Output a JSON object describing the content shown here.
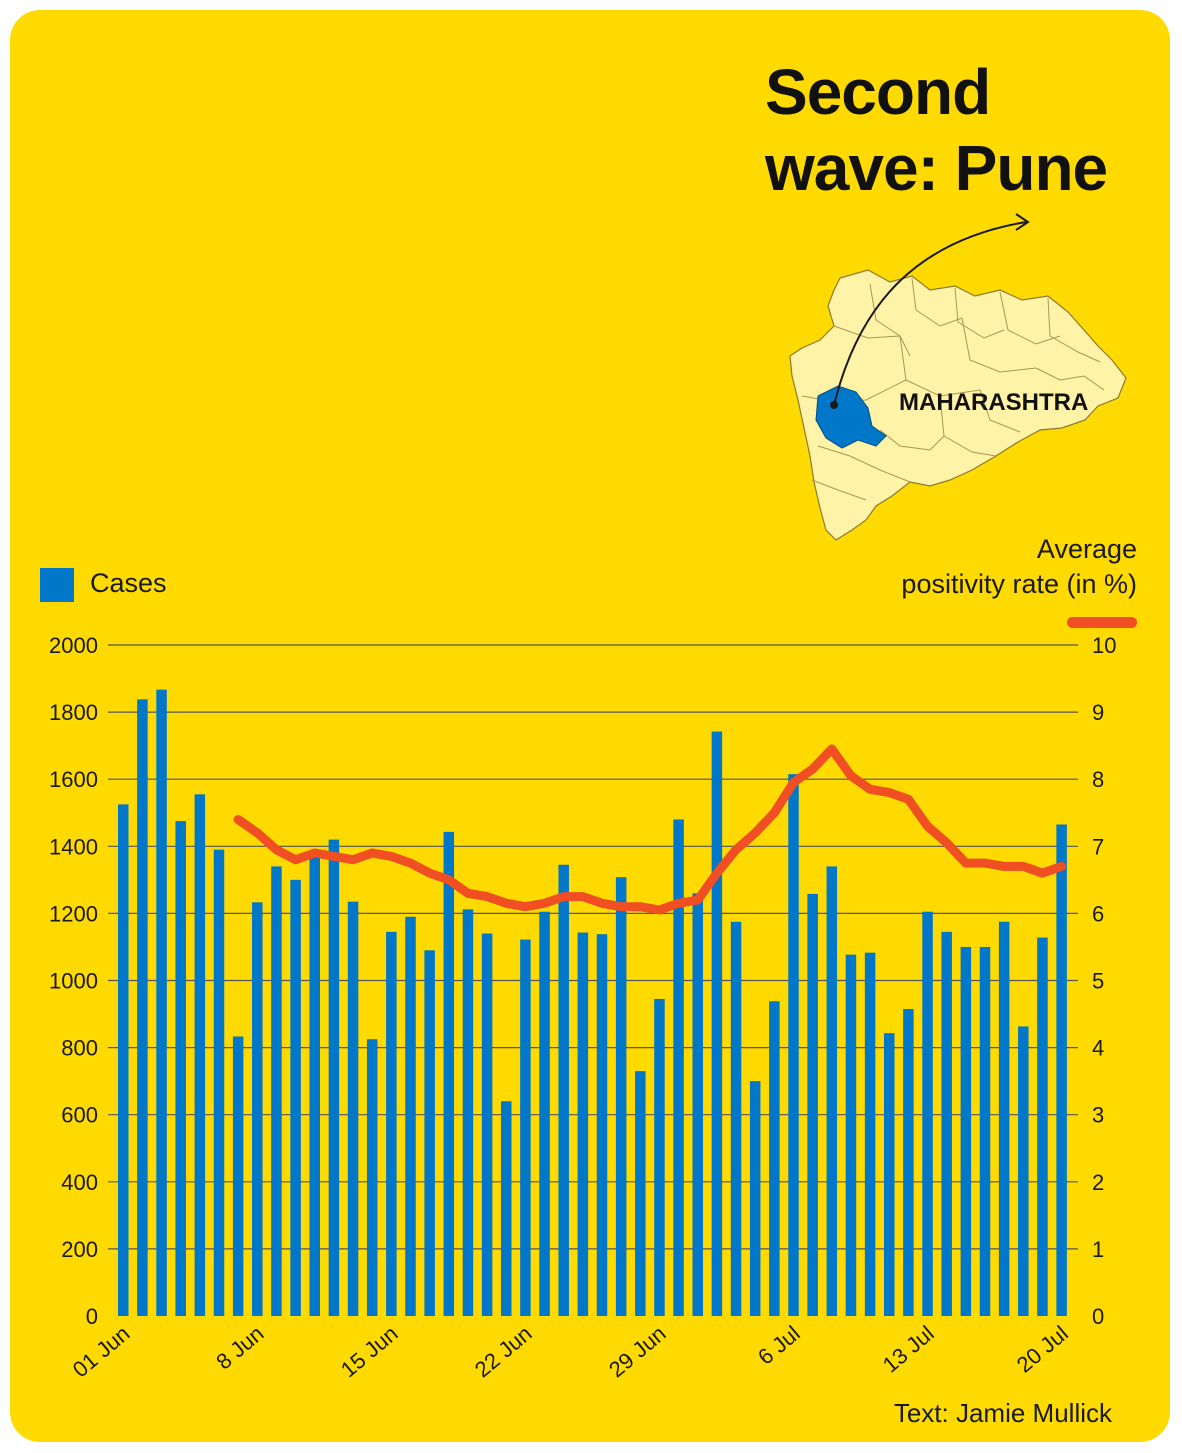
{
  "title": {
    "line1": "Second",
    "line2": "wave: Pune"
  },
  "map": {
    "label": "MAHARASHTRA",
    "state_fill": "#FFF3A8",
    "district_fill": "#0077C8"
  },
  "credit": "Text: Jamie Mullick",
  "colors": {
    "background": "#FFDA00",
    "bars": "#0077C8",
    "line": "#F04E23",
    "grid": "#555555"
  },
  "chart_data": {
    "type": "bar",
    "legend": {
      "cases": "Cases",
      "rate_line1": "Average",
      "rate_line2": "positivity rate (in %)"
    },
    "y_left": {
      "min": 0,
      "max": 2000,
      "ticks": [
        0,
        200,
        400,
        600,
        800,
        1000,
        1200,
        1400,
        1600,
        1800,
        2000
      ]
    },
    "y_right": {
      "min": 0,
      "max": 10,
      "ticks": [
        0,
        1,
        2,
        3,
        4,
        5,
        6,
        7,
        8,
        9,
        10
      ]
    },
    "x_tick_labels": [
      {
        "index": 0,
        "label": "01 Jun"
      },
      {
        "index": 7,
        "label": "8 Jun"
      },
      {
        "index": 14,
        "label": "15 Jun"
      },
      {
        "index": 21,
        "label": "22 Jun"
      },
      {
        "index": 28,
        "label": "29 Jun"
      },
      {
        "index": 35,
        "label": "6 Jul"
      },
      {
        "index": 42,
        "label": "13 Jul"
      },
      {
        "index": 49,
        "label": "20 Jul"
      }
    ],
    "series": [
      {
        "name": "Cases",
        "axis": "left",
        "values": [
          1525,
          1838,
          1867,
          1475,
          1555,
          1390,
          833,
          1233,
          1340,
          1300,
          1380,
          1420,
          1235,
          825,
          1145,
          1190,
          1090,
          1443,
          1212,
          1140,
          640,
          1122,
          1205,
          1345,
          1143,
          1138,
          1308,
          730,
          945,
          1480,
          1260,
          1742,
          1175,
          700,
          938,
          1615,
          1258,
          1340,
          1077,
          1083,
          843,
          915,
          1205,
          1145,
          1100,
          1100,
          1175,
          863,
          1128,
          1465
        ]
      },
      {
        "name": "Average positivity rate (in %)",
        "axis": "right",
        "start_index": 6,
        "values": [
          7.4,
          7.2,
          6.95,
          6.8,
          6.9,
          6.85,
          6.8,
          6.9,
          6.85,
          6.75,
          6.6,
          6.5,
          6.3,
          6.25,
          6.15,
          6.1,
          6.15,
          6.25,
          6.25,
          6.15,
          6.1,
          6.1,
          6.05,
          6.15,
          6.2,
          6.6,
          6.95,
          7.2,
          7.5,
          7.95,
          8.15,
          8.45,
          8.05,
          7.85,
          7.8,
          7.7,
          7.3,
          7.05,
          6.75,
          6.75,
          6.7,
          6.7,
          6.6,
          6.7
        ]
      }
    ]
  }
}
